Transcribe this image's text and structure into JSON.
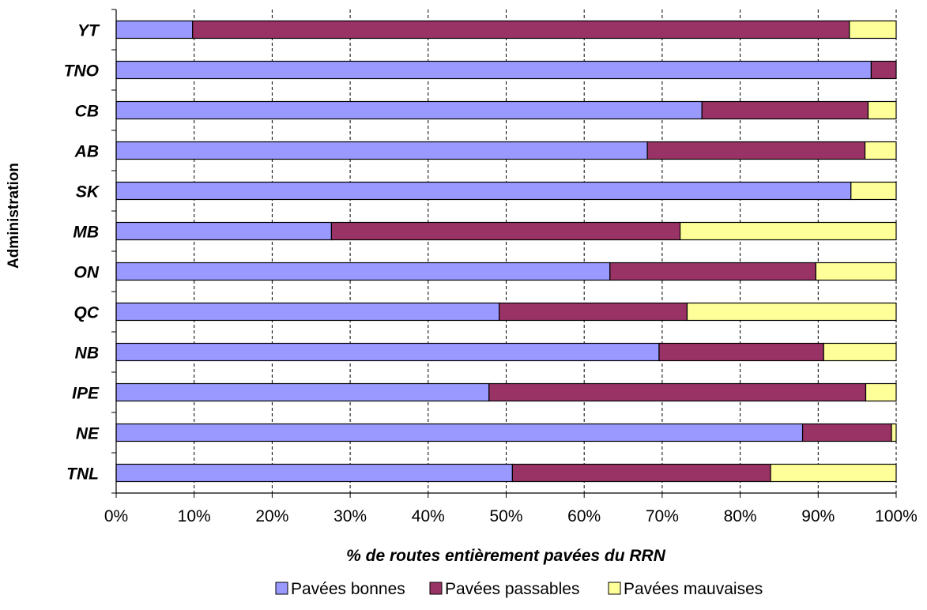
{
  "chart_data": {
    "type": "bar",
    "orientation": "horizontal",
    "stacked": "percent",
    "categories": [
      "YT",
      "TNO",
      "CB",
      "AB",
      "SK",
      "MB",
      "ON",
      "QC",
      "NB",
      "IPE",
      "NE",
      "TNL"
    ],
    "series": [
      {
        "name": "Pavées bonnes",
        "color": "#9999ff",
        "values": [
          9.8,
          96.8,
          75.1,
          68.1,
          94.2,
          27.6,
          63.3,
          49.1,
          69.6,
          47.8,
          88.0,
          50.8
        ]
      },
      {
        "name": "Pavées passables",
        "color": "#993366",
        "values": [
          84.2,
          3.2,
          21.3,
          27.9,
          0.0,
          44.7,
          26.4,
          24.1,
          21.1,
          48.3,
          11.4,
          33.1
        ]
      },
      {
        "name": "Pavées mauvaises",
        "color": "#ffff99",
        "values": [
          6.0,
          0.0,
          3.6,
          4.0,
          5.8,
          27.7,
          10.3,
          26.8,
          9.3,
          3.9,
          0.6,
          16.1
        ]
      }
    ],
    "x_ticks": [
      "0%",
      "10%",
      "20%",
      "30%",
      "40%",
      "50%",
      "60%",
      "70%",
      "80%",
      "90%",
      "100%"
    ],
    "xlim": [
      0,
      100
    ],
    "xlabel": "% de routes entièrement pavées du RRN",
    "ylabel": "Administration",
    "grid": "vertical dashed",
    "legend_position": "bottom"
  }
}
